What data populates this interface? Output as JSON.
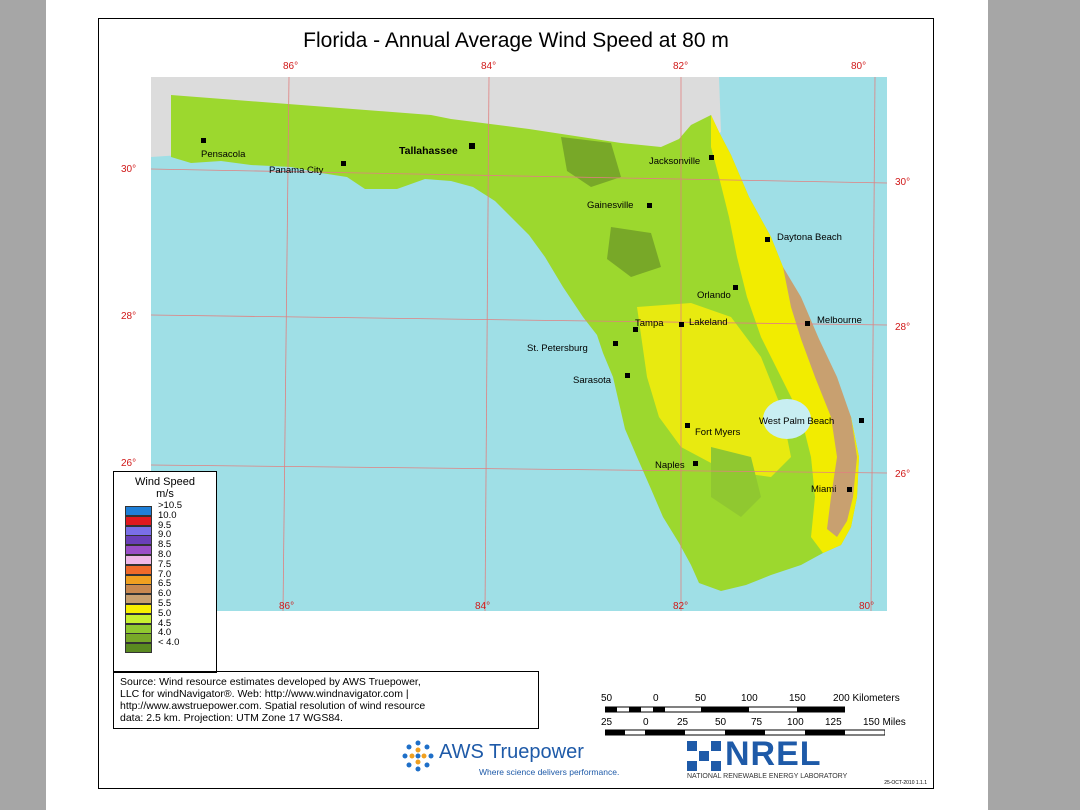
{
  "title": "Florida - Annual Average Wind Speed at 80 m",
  "top_lon_labels": [
    "86°",
    "84°",
    "82°",
    "80°"
  ],
  "bottom_lon_labels": [
    "86°",
    "84°",
    "82°",
    "80°"
  ],
  "left_lat_labels": [
    "30°",
    "28°",
    "26°"
  ],
  "right_lat_labels": [
    "30°",
    "28°",
    "26°"
  ],
  "cities": [
    {
      "name": "Pensacola"
    },
    {
      "name": "Panama City"
    },
    {
      "name": "Tallahassee"
    },
    {
      "name": "Jacksonville"
    },
    {
      "name": "Gainesville"
    },
    {
      "name": "Daytona Beach"
    },
    {
      "name": "Orlando"
    },
    {
      "name": "Tampa"
    },
    {
      "name": "Lakeland"
    },
    {
      "name": "Melbourne"
    },
    {
      "name": "St. Petersburg"
    },
    {
      "name": "Sarasota"
    },
    {
      "name": "West Palm Beach"
    },
    {
      "name": "Fort Myers"
    },
    {
      "name": "Naples"
    },
    {
      "name": "Miami"
    }
  ],
  "legend": {
    "title": "Wind Speed",
    "units": "m/s",
    "items": [
      {
        "label": ">10.5",
        "color": "#1e7fd8"
      },
      {
        "label": "10.0",
        "color": "#e0191f"
      },
      {
        "label": "9.5",
        "color": "#7a6fe8"
      },
      {
        "label": "9.0",
        "color": "#6a3fb8"
      },
      {
        "label": "8.5",
        "color": "#9a4fc8"
      },
      {
        "label": "8.0",
        "color": "#f0b8e8"
      },
      {
        "label": "7.5",
        "color": "#f06a2a"
      },
      {
        "label": "7.0",
        "color": "#f0a020"
      },
      {
        "label": "6.5",
        "color": "#c88850"
      },
      {
        "label": "6.0",
        "color": "#c8a070"
      },
      {
        "label": "5.5",
        "color": "#f8f000"
      },
      {
        "label": "5.0",
        "color": "#c8f030"
      },
      {
        "label": "4.5",
        "color": "#90c830"
      },
      {
        "label": "4.0",
        "color": "#78a828"
      },
      {
        "label": "< 4.0",
        "color": "#5a8a20"
      }
    ]
  },
  "source_text": [
    "Source: Wind resource estimates developed by AWS Truepower,",
    "LLC for windNavigator®. Web: http://www.windnavigator.com |",
    "http://www.awstruepower.com. Spatial resolution of wind resource",
    "data: 2.5 km. Projection: UTM Zone 17 WGS84."
  ],
  "scale_km": {
    "labels": [
      "50",
      "0",
      "50",
      "100",
      "150",
      "200 Kilometers"
    ]
  },
  "scale_mi": {
    "labels": [
      "25",
      "0",
      "25",
      "50",
      "75",
      "100",
      "125",
      "150 Miles"
    ]
  },
  "logos": {
    "aws_name": "AWS Truepower",
    "aws_tagline": "Where science delivers performance.",
    "nrel_name": "NREL",
    "nrel_tagline": "NATIONAL RENEWABLE ENERGY LABORATORY",
    "date_code": "25-OCT-2010 1.1.1"
  },
  "colors": {
    "water": "#9fdfe6",
    "land_outside": "#dcdcdc",
    "grid": "#e08080",
    "label_red": "#d01818"
  }
}
